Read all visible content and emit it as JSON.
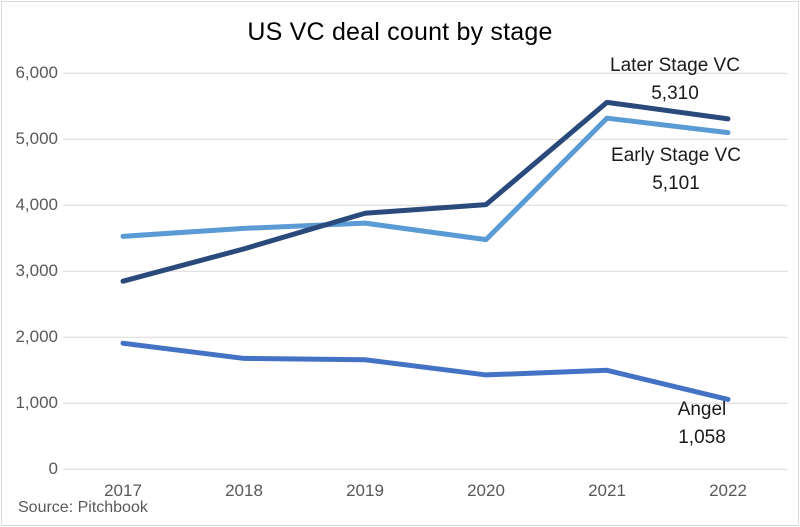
{
  "title": "US VC deal count by stage",
  "source": "Source: Pitchbook",
  "colors": {
    "later_stage": "#2b4a7c",
    "early_stage": "#5b9bd5",
    "angel": "#4472c4",
    "gridline": "#d9d9d9",
    "axis_text": "#595959"
  },
  "chart_data": {
    "type": "line",
    "title": "US VC deal count by stage",
    "categories": [
      "2017",
      "2018",
      "2019",
      "2020",
      "2021",
      "2022"
    ],
    "series": [
      {
        "name": "Later Stage VC",
        "color": "#2b4a7c",
        "values": [
          2850,
          3340,
          3880,
          4010,
          5560,
          5310
        ]
      },
      {
        "name": "Early Stage VC",
        "color": "#5b9bd5",
        "values": [
          3530,
          3650,
          3730,
          3480,
          5320,
          5101
        ]
      },
      {
        "name": "Angel",
        "color": "#4472c4",
        "values": [
          1910,
          1680,
          1660,
          1430,
          1500,
          1058
        ]
      }
    ],
    "xlabel": "",
    "ylabel": "",
    "ylim": [
      0,
      6000
    ],
    "ytick_step": 1000,
    "yticks": [
      "0",
      "1,000",
      "2,000",
      "3,000",
      "4,000",
      "5,000",
      "6,000"
    ],
    "grid": true,
    "legend": "none",
    "annotations": [
      {
        "series": "Later Stage VC",
        "label": "Later Stage VC",
        "value_label": "5,310"
      },
      {
        "series": "Early Stage VC",
        "label": "Early Stage VC",
        "value_label": "5,101"
      },
      {
        "series": "Angel",
        "label": "Angel",
        "value_label": "1,058"
      }
    ]
  }
}
